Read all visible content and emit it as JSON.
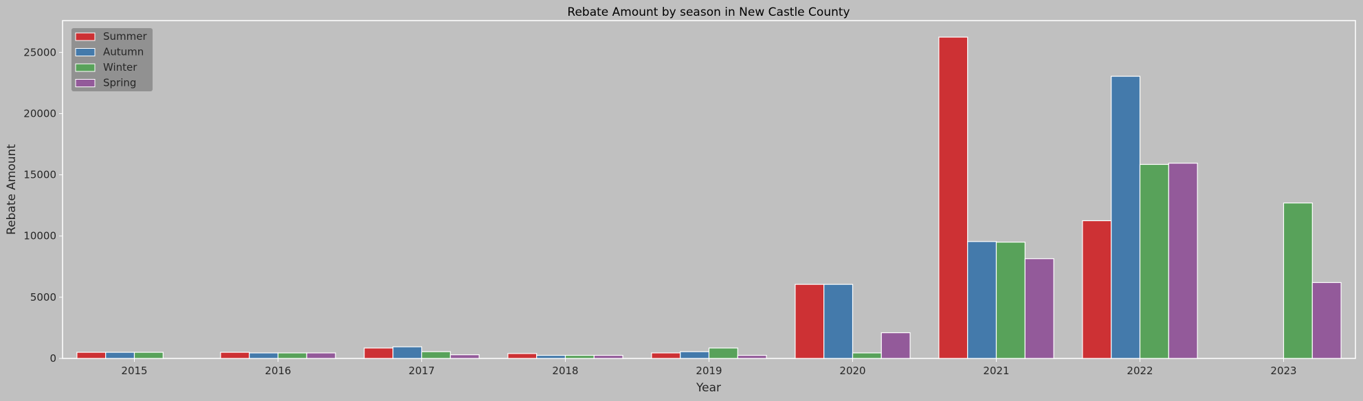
{
  "chart_data": {
    "type": "bar",
    "title": "Rebate Amount by season in New Castle County",
    "xlabel": "Year",
    "ylabel": "Rebate Amount",
    "categories": [
      "2015",
      "2016",
      "2017",
      "2018",
      "2019",
      "2020",
      "2021",
      "2022",
      "2023"
    ],
    "yticks": [
      0,
      5000,
      10000,
      15000,
      20000,
      25000
    ],
    "ylim": [
      0,
      27600
    ],
    "grid": false,
    "legend_position": "top-left",
    "background": "#c0c0c0",
    "series": [
      {
        "name": "Summer",
        "color": "#cd3134",
        "values": [
          500,
          500,
          850,
          400,
          450,
          6050,
          26250,
          11250,
          0
        ]
      },
      {
        "name": "Autumn",
        "color": "#447aab",
        "values": [
          500,
          450,
          950,
          250,
          550,
          6050,
          9550,
          23050,
          0
        ]
      },
      {
        "name": "Winter",
        "color": "#58a25a",
        "values": [
          500,
          450,
          550,
          250,
          850,
          450,
          9500,
          15850,
          12700
        ]
      },
      {
        "name": "Spring",
        "color": "#935a9a",
        "values": [
          0,
          450,
          300,
          250,
          250,
          2100,
          8150,
          15950,
          6200
        ]
      }
    ]
  }
}
